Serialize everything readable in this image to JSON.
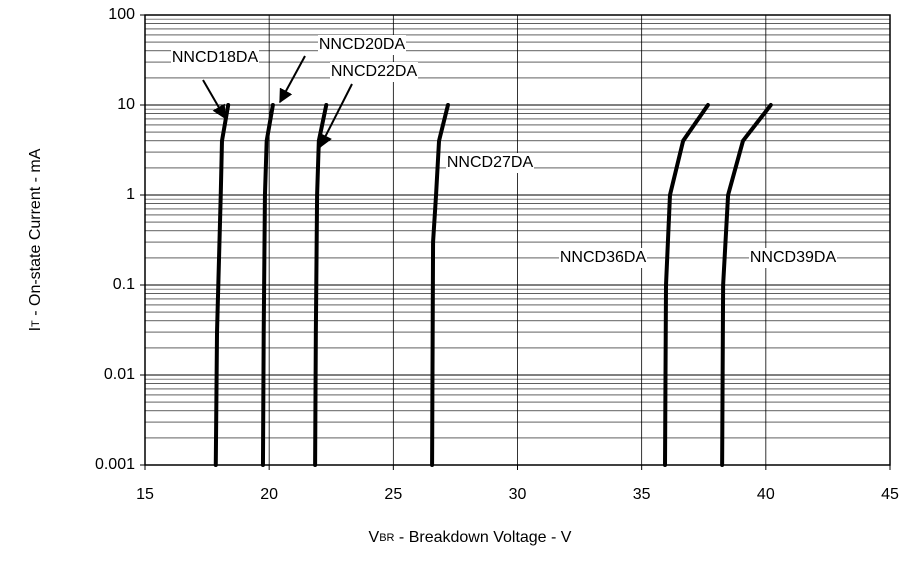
{
  "chart_data": {
    "type": "line",
    "log_y": true,
    "grid": true,
    "xlabel": [
      "V",
      "BR",
      " - Breakdown Voltage - V"
    ],
    "ylabel": [
      "I",
      "T",
      " - On-state Current - mA"
    ],
    "xlim": [
      15,
      45
    ],
    "xticks": [
      15,
      20,
      25,
      30,
      35,
      40,
      45
    ],
    "ylim": [
      0.001,
      100
    ],
    "yticks": [
      0.001,
      0.01,
      0.1,
      1,
      10,
      100
    ],
    "series": [
      {
        "name": "NNCD18DA",
        "color": "#000000",
        "x": [
          17.85,
          17.9,
          18.05,
          18.1,
          18.35
        ],
        "values": [
          0.001,
          0.03,
          1,
          4,
          10
        ]
      },
      {
        "name": "NNCD20DA",
        "color": "#000000",
        "x": [
          19.75,
          19.78,
          19.83,
          19.9,
          20.15
        ],
        "values": [
          0.001,
          0.03,
          1,
          4,
          10
        ]
      },
      {
        "name": "NNCD22DA",
        "color": "#000000",
        "x": [
          21.85,
          21.88,
          21.93,
          22.0,
          22.3
        ],
        "values": [
          0.001,
          0.03,
          1,
          4,
          10
        ]
      },
      {
        "name": "NNCD27DA",
        "color": "#000000",
        "x": [
          26.56,
          26.6,
          26.72,
          26.84,
          27.2
        ],
        "values": [
          0.001,
          0.3,
          1,
          4,
          10
        ]
      },
      {
        "name": "NNCD36DA",
        "color": "#000000",
        "x": [
          35.94,
          35.98,
          36.14,
          36.67,
          37.67
        ],
        "values": [
          0.001,
          0.1,
          1,
          4,
          10
        ]
      },
      {
        "name": "NNCD39DA",
        "color": "#000000",
        "x": [
          38.24,
          38.28,
          38.48,
          39.08,
          40.2
        ],
        "values": [
          0.001,
          0.1,
          1,
          4,
          10
        ]
      }
    ]
  }
}
